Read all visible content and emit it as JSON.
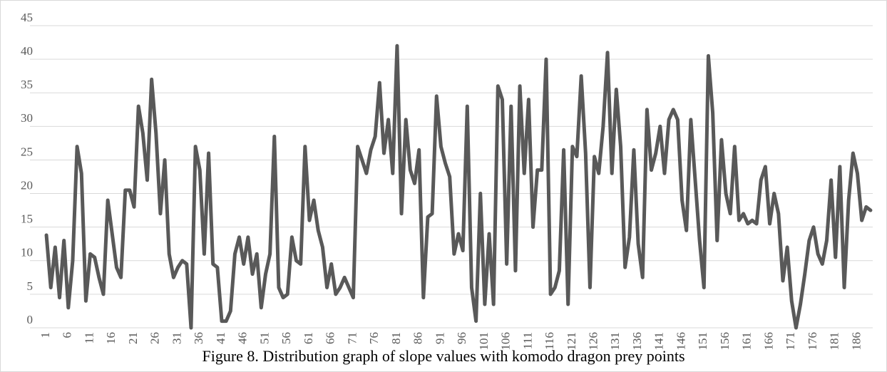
{
  "chart_data": {
    "type": "line",
    "title": "Figure 8. Distribution graph of slope values with komodo dragon prey points",
    "categories": [
      "1",
      null,
      null,
      null,
      null,
      "6",
      null,
      null,
      null,
      null,
      "11",
      null,
      null,
      null,
      null,
      "16",
      null,
      null,
      null,
      null,
      "21",
      null,
      null,
      null,
      null,
      "26",
      null,
      null,
      null,
      null,
      "31",
      null,
      null,
      null,
      null,
      "36",
      null,
      null,
      null,
      null,
      "41",
      null,
      null,
      null,
      null,
      "46",
      null,
      null,
      null,
      null,
      "51",
      null,
      null,
      null,
      null,
      "56",
      null,
      null,
      null,
      null,
      "61",
      null,
      null,
      null,
      null,
      "66",
      null,
      null,
      null,
      null,
      "71",
      null,
      null,
      null,
      null,
      "76",
      null,
      null,
      null,
      null,
      "81",
      null,
      null,
      null,
      null,
      "86",
      null,
      null,
      null,
      null,
      "91",
      null,
      null,
      null,
      null,
      "96",
      null,
      null,
      null,
      null,
      "101",
      null,
      null,
      null,
      null,
      "106",
      null,
      null,
      null,
      null,
      "111",
      null,
      null,
      null,
      null,
      "116",
      null,
      null,
      null,
      null,
      "121",
      null,
      null,
      null,
      null,
      "126",
      null,
      null,
      null,
      null,
      "131",
      null,
      null,
      null,
      null,
      "136",
      null,
      null,
      null,
      null,
      "141",
      null,
      null,
      null,
      null,
      "146",
      null,
      null,
      null,
      null,
      "151",
      null,
      null,
      null,
      null,
      "156",
      null,
      null,
      null,
      null,
      "161",
      null,
      null,
      null,
      null,
      "166",
      null,
      null,
      null,
      null,
      "171",
      null,
      null,
      null,
      null,
      "176",
      null,
      null,
      null,
      null,
      "181",
      null,
      null,
      null,
      null,
      "186",
      null,
      null,
      null
    ],
    "values": [
      13.8,
      6,
      12,
      4.5,
      13,
      3,
      10,
      27,
      23,
      4,
      11,
      10.5,
      7.5,
      5,
      19,
      14,
      9,
      7.5,
      20.5,
      20.5,
      18,
      33,
      29,
      22,
      37,
      29,
      17,
      25,
      11,
      7.5,
      9,
      10,
      9.5,
      0,
      27,
      23.5,
      11,
      26,
      9.5,
      9,
      1,
      1,
      2.5,
      11,
      13.5,
      9.5,
      13.5,
      8,
      11,
      3,
      8,
      11,
      28.5,
      6,
      4.5,
      5,
      13.5,
      10,
      9.5,
      27,
      16,
      19,
      14.5,
      12,
      6,
      9.5,
      5,
      6,
      7.5,
      6,
      4.5,
      27,
      25,
      23,
      26.5,
      28.5,
      36.5,
      26,
      31,
      23,
      42,
      17,
      31,
      23.5,
      21.5,
      26.5,
      4.5,
      16.5,
      17,
      34.5,
      27,
      24.5,
      22.5,
      11,
      14,
      11.5,
      33,
      6,
      1,
      20,
      3.5,
      14,
      3.5,
      36,
      34,
      9.5,
      33,
      8.5,
      36,
      23,
      34,
      15,
      23.5,
      23.5,
      40,
      5,
      6,
      8.5,
      26.5,
      3.5,
      27,
      25.5,
      37.5,
      26,
      6,
      25.5,
      23,
      30,
      41,
      23,
      35.5,
      27,
      9,
      13.5,
      26.5,
      12.5,
      7.5,
      32.5,
      23.5,
      26,
      30,
      23,
      31,
      32.5,
      31,
      19,
      14.5,
      31,
      22,
      13,
      6,
      40.5,
      32,
      13,
      28,
      20,
      17,
      27,
      16,
      17,
      15.5,
      16,
      15.5,
      22,
      24,
      15.5,
      20,
      17,
      7,
      12,
      4,
      0,
      3.5,
      8,
      13,
      15,
      11,
      9.5,
      13,
      22,
      10.5,
      24,
      6,
      19,
      26,
      23,
      16,
      18,
      17.5
    ],
    "color": "#595959",
    "ylim": [
      0,
      45
    ],
    "yticks": [
      0,
      5,
      10,
      15,
      20,
      25,
      30,
      35,
      40,
      45
    ],
    "grid": true
  }
}
